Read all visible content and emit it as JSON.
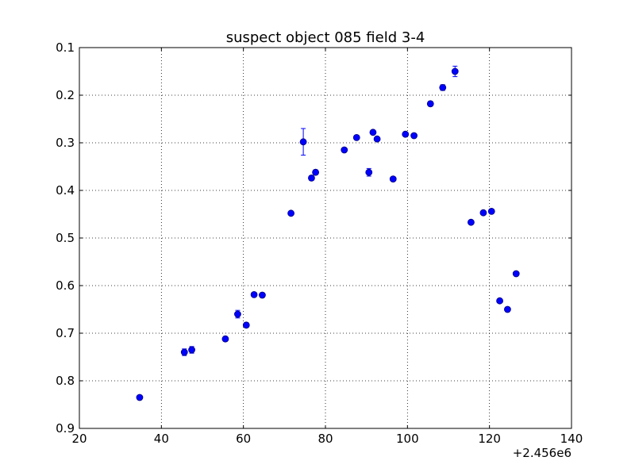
{
  "chart_data": {
    "type": "scatter",
    "title": "suspect object 085 field 3-4",
    "xlabel": "",
    "ylabel": "",
    "x_offset_label": "+2.456e6",
    "xlim": [
      20,
      140
    ],
    "ylim": [
      0.1,
      0.9
    ],
    "y_inverted": true,
    "grid": true,
    "grid_style": "dotted",
    "x_ticks": [
      20,
      40,
      60,
      80,
      100,
      120,
      140
    ],
    "x_tick_labels": [
      "20",
      "40",
      "60",
      "80",
      "100",
      "120",
      "140"
    ],
    "y_ticks": [
      0.1,
      0.2,
      0.3,
      0.4,
      0.5,
      0.6,
      0.7,
      0.8,
      0.9
    ],
    "y_tick_labels": [
      "0.1",
      "0.2",
      "0.3",
      "0.4",
      "0.5",
      "0.6",
      "0.7",
      "0.8",
      "0.9"
    ],
    "marker_color": "#0000ff",
    "marker_edge_color": "#000080",
    "errorbar_color": "#0000ff",
    "points": [
      {
        "x": 34.7,
        "y": 0.835,
        "err": 0.004
      },
      {
        "x": 45.6,
        "y": 0.74,
        "err": 0.007
      },
      {
        "x": 47.4,
        "y": 0.735,
        "err": 0.007
      },
      {
        "x": 55.6,
        "y": 0.712,
        "err": 0.005
      },
      {
        "x": 58.6,
        "y": 0.66,
        "err": 0.008
      },
      {
        "x": 60.7,
        "y": 0.683,
        "err": 0.005
      },
      {
        "x": 62.6,
        "y": 0.619,
        "err": 0.004
      },
      {
        "x": 64.6,
        "y": 0.62,
        "err": 0.004
      },
      {
        "x": 71.6,
        "y": 0.448,
        "err": 0.004
      },
      {
        "x": 74.6,
        "y": 0.298,
        "err": 0.028
      },
      {
        "x": 76.6,
        "y": 0.374,
        "err": 0.005
      },
      {
        "x": 77.6,
        "y": 0.362,
        "err": 0.005
      },
      {
        "x": 84.6,
        "y": 0.315,
        "err": 0.004
      },
      {
        "x": 87.6,
        "y": 0.289,
        "err": 0.004
      },
      {
        "x": 90.6,
        "y": 0.362,
        "err": 0.008
      },
      {
        "x": 91.6,
        "y": 0.278,
        "err": 0.004
      },
      {
        "x": 92.6,
        "y": 0.292,
        "err": 0.004
      },
      {
        "x": 96.5,
        "y": 0.376,
        "err": 0.004
      },
      {
        "x": 99.5,
        "y": 0.282,
        "err": 0.004
      },
      {
        "x": 101.6,
        "y": 0.285,
        "err": 0.004
      },
      {
        "x": 105.6,
        "y": 0.218,
        "err": 0.005
      },
      {
        "x": 108.6,
        "y": 0.184,
        "err": 0.006
      },
      {
        "x": 111.6,
        "y": 0.15,
        "err": 0.011
      },
      {
        "x": 115.5,
        "y": 0.467,
        "err": 0.004
      },
      {
        "x": 118.5,
        "y": 0.447,
        "err": 0.004
      },
      {
        "x": 120.5,
        "y": 0.444,
        "err": 0.004
      },
      {
        "x": 122.5,
        "y": 0.632,
        "err": 0.004
      },
      {
        "x": 124.4,
        "y": 0.65,
        "err": 0.004
      },
      {
        "x": 126.5,
        "y": 0.575,
        "err": 0.004
      }
    ]
  }
}
